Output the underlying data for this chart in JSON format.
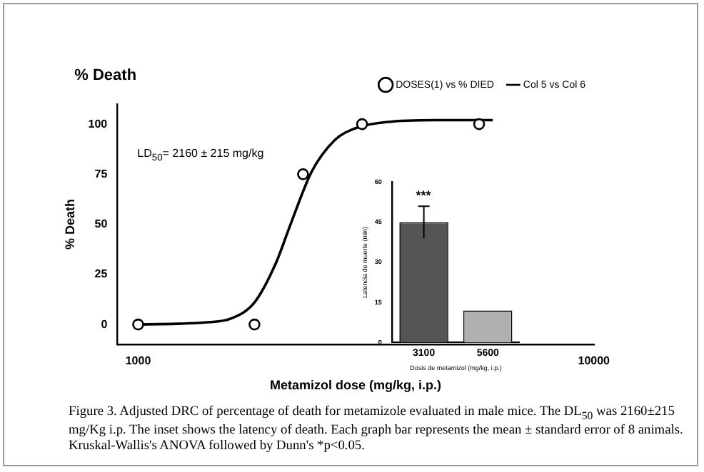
{
  "chart_data": [
    {
      "type": "scatter",
      "title": "% Death",
      "xlabel": "Metamizol dose (mg/kg, i.p.)",
      "ylabel": "% Death",
      "series": [
        {
          "type": "scatter",
          "name": "DOSES(1) vs % DIED",
          "color": "#000000",
          "marker": "circle",
          "x": [
            1000,
            1800,
            2300,
            3100,
            5600
          ],
          "values": [
            0,
            0,
            75,
            100,
            100
          ]
        },
        {
          "type": "line",
          "name": "Col 5 vs Col 6",
          "color": "#000000",
          "marker": "none",
          "line_style": "solid",
          "x": [
            1000,
            1400,
            1600,
            1800,
            2000,
            2160,
            2400,
            2700,
            3000,
            3500,
            4500,
            6000
          ],
          "values": [
            0,
            1,
            3,
            11,
            30,
            50,
            76,
            92,
            98,
            101,
            102,
            102
          ]
        }
      ],
      "log": "x",
      "xlim": [
        900,
        10000
      ],
      "xticks": [
        1000,
        10000
      ],
      "ylim": [
        -10,
        110
      ],
      "yticks": [
        0,
        25,
        50,
        75,
        100
      ],
      "grid": false,
      "legend": "top right",
      "annotations": [
        "LD$_{50}$= 2160 ± 215 mg/kg",
        "Figure 3. Adjusted DRC of percentage of death for metamizole evaluated in male mice. The DL$_{50}$ was 2160±215 mg/Kg i.p. The inset shows the latency of death. Each graph bar represents the mean ± standard error of 8 animals. Kruskal-Wallis's ANOVA followed by Dunn's *p<0.05."
      ]
    },
    {
      "type": "bar",
      "xlabel": "Dosis de metamizol (mg/kg, i.p.)",
      "ylabel": "Latencia de muerte (min)",
      "categories": [
        "3100",
        "5600"
      ],
      "values": [
        45,
        12
      ],
      "colors": [
        "#555555",
        "#b0b0b0"
      ],
      "errors": [
        6,
        null
      ],
      "ylim": [
        0,
        60
      ],
      "yticks": [
        0,
        15,
        30,
        45,
        60
      ],
      "grid": false,
      "legend": false,
      "annotations": [
        "***"
      ]
    }
  ]
}
